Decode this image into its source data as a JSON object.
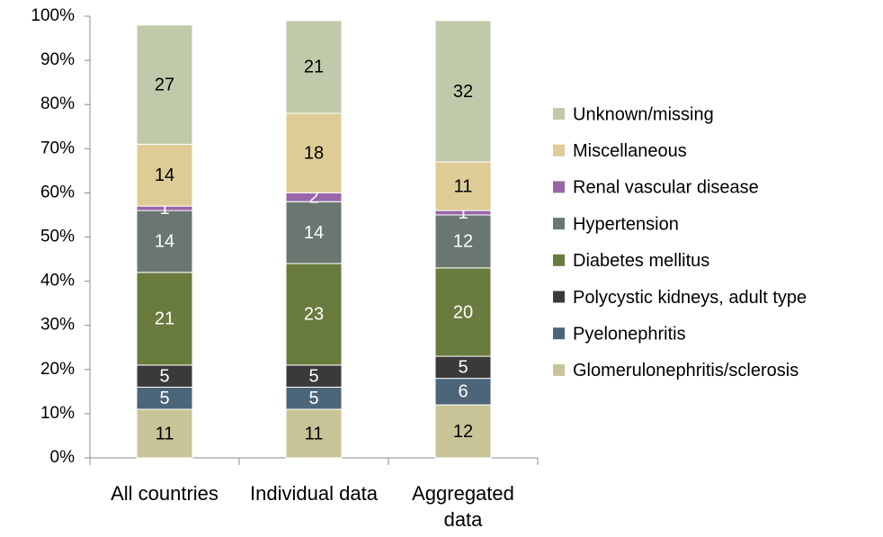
{
  "chart_data": {
    "type": "stacked_bar",
    "categories": [
      "All countries",
      "Individual data",
      "Aggregated data"
    ],
    "series": [
      {
        "name": "Glomerulonephritis/sclerosis",
        "color": "#c9c497",
        "values": [
          11,
          11,
          12
        ]
      },
      {
        "name": "Pyelonephritis",
        "color": "#4b6579",
        "values": [
          5,
          5,
          6
        ]
      },
      {
        "name": "Polycystic kidneys, adult type",
        "color": "#3a3a3a",
        "values": [
          5,
          5,
          5
        ]
      },
      {
        "name": "Diabetes mellitus",
        "color": "#6a7b3e",
        "values": [
          21,
          23,
          20
        ]
      },
      {
        "name": "Hypertension",
        "color": "#6a7770",
        "values": [
          14,
          14,
          12
        ]
      },
      {
        "name": "Renal vascular disease",
        "color": "#9966aa",
        "values": [
          1,
          2,
          1
        ]
      },
      {
        "name": "Miscellaneous",
        "color": "#ddcc96",
        "values": [
          14,
          18,
          11
        ]
      },
      {
        "name": "Unknown/missing",
        "color": "#c0c9aa",
        "values": [
          27,
          21,
          32
        ]
      }
    ],
    "ylim": [
      0,
      100
    ],
    "yticks": [
      {
        "value": 0,
        "label": "0%"
      },
      {
        "value": 10,
        "label": "10%"
      },
      {
        "value": 20,
        "label": "20%"
      },
      {
        "value": 30,
        "label": "30%"
      },
      {
        "value": 40,
        "label": "40%"
      },
      {
        "value": 50,
        "label": "50%"
      },
      {
        "value": 60,
        "label": "60%"
      },
      {
        "value": 70,
        "label": "70%"
      },
      {
        "value": 80,
        "label": "80%"
      },
      {
        "value": 90,
        "label": "90%"
      },
      {
        "value": 100,
        "label": "100%"
      }
    ],
    "legend": "right"
  }
}
